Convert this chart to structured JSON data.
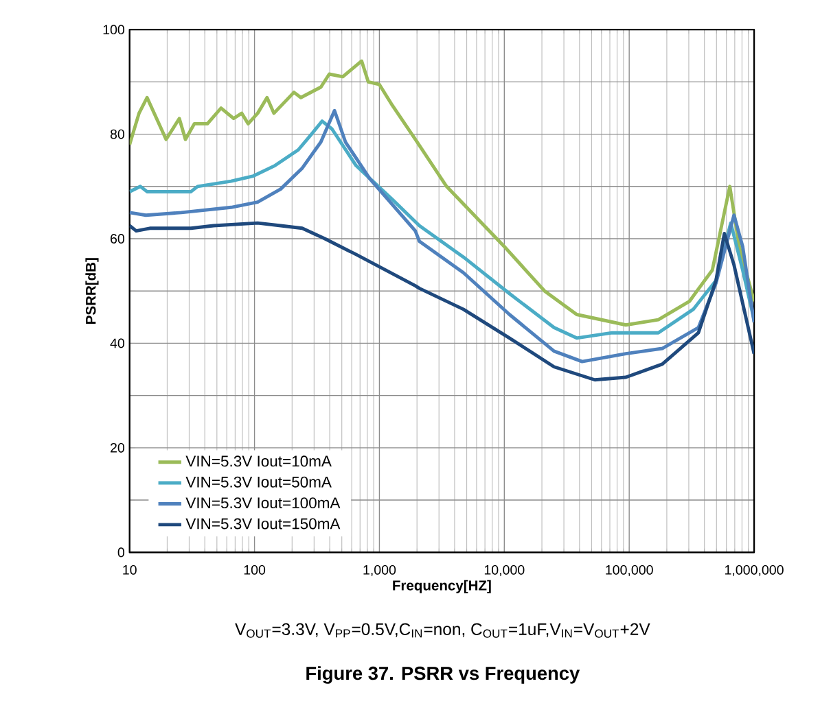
{
  "chart_data": {
    "type": "line",
    "title": "Figure 37. PSRR vs Frequency",
    "xlabel": "Frequency[HZ]",
    "ylabel": "PSRR[dB]",
    "annotations": [
      "V$_{OUT}$=3.3V, V$_{PP}$=0.5V,C$_{IN}$=non, C$_{OUT}$=1uF,V$_{IN}$=V$_{OUT}$+2V"
    ],
    "log": "x",
    "grid": true,
    "legend": "bottom left",
    "marker": "none",
    "line_style": "solid",
    "xlim": [
      10,
      1000000
    ],
    "ylim": [
      0,
      100
    ],
    "xticks": [
      10,
      100,
      {
        "value": 1000,
        "label": "1,000"
      },
      {
        "value": 10000,
        "label": "10,000"
      },
      {
        "value": 100000,
        "label": "100,000"
      },
      {
        "value": 1000000,
        "label": "1,000,000"
      }
    ],
    "yticks": [
      0,
      {
        "value": 10,
        "label": null
      },
      20,
      {
        "value": 30,
        "label": null
      },
      40,
      {
        "value": 50,
        "label": null
      },
      60,
      {
        "value": 70,
        "label": null
      },
      80,
      {
        "value": 90,
        "label": null
      },
      100
    ],
    "series": [
      {
        "name": "VIN=5.3V Iout=10mA",
        "color": "#9bbb59",
        "x": [
          10,
          11.9,
          13.8,
          19.6,
          25,
          28,
          33,
          42,
          54,
          68,
          79,
          89,
          106,
          126,
          143,
          207,
          235,
          340,
          397,
          509,
          721,
          815,
          1000,
          1270,
          1940,
          3450,
          10000,
          21000,
          38000,
          94000,
          171000,
          303000,
          463000,
          639000,
          761000,
          1000000
        ],
        "values": [
          78,
          84,
          87,
          79,
          83,
          79,
          82,
          82,
          85,
          83,
          84,
          82,
          84,
          87,
          84,
          88,
          87,
          89,
          91.5,
          91,
          94,
          90,
          89.5,
          85.5,
          79,
          70,
          58.5,
          50,
          45.5,
          43.5,
          44.5,
          48,
          54,
          70,
          58.5,
          48
        ]
      },
      {
        "name": "VIN=5.3V Iout=50mA",
        "color": "#4bacc6",
        "x": [
          10,
          12.2,
          13.8,
          20,
          31,
          35,
          65,
          98,
          146,
          224,
          286,
          348,
          417,
          650,
          1270,
          2090,
          4700,
          11000,
          25000,
          38000,
          73000,
          171000,
          326000,
          495000,
          650000,
          810000,
          1000000
        ],
        "values": [
          69,
          70,
          69,
          69,
          69,
          70,
          71,
          72,
          74,
          77,
          80,
          82.5,
          81,
          74,
          67.5,
          62.5,
          56.5,
          49.5,
          43,
          41,
          42,
          42,
          46.5,
          52,
          63,
          54,
          44.5
        ]
      },
      {
        "name": "VIN=5.3V Iout=100mA",
        "color": "#4f81bd",
        "x": [
          10,
          13.5,
          26,
          65,
          106,
          162,
          241,
          340,
          437,
          535,
          836,
          1940,
          2090,
          4700,
          11000,
          25000,
          42000,
          94000,
          184000,
          358000,
          495000,
          690000,
          810000,
          1000000
        ],
        "values": [
          65,
          64.5,
          65,
          66,
          67,
          69.5,
          73.5,
          78.5,
          84.5,
          78.5,
          71.5,
          61.5,
          59.5,
          53.5,
          45.5,
          38.5,
          36.5,
          38,
          39,
          43,
          51.5,
          64.5,
          58.5,
          44
        ]
      },
      {
        "name": "VIN=5.3V Iout=150mA",
        "color": "#1f497d",
        "x": [
          10,
          11.3,
          14.5,
          31,
          47,
          106,
          162,
          241,
          366,
          650,
          1940,
          2090,
          4700,
          11000,
          25000,
          53000,
          94000,
          184000,
          358000,
          495000,
          578000,
          690000,
          1000000
        ],
        "values": [
          62.5,
          61.5,
          62,
          62,
          62.5,
          63,
          62.5,
          62,
          60,
          57,
          51,
          50.5,
          46.5,
          41,
          35.5,
          33,
          33.5,
          36,
          42,
          52,
          61,
          55,
          38
        ]
      }
    ]
  }
}
